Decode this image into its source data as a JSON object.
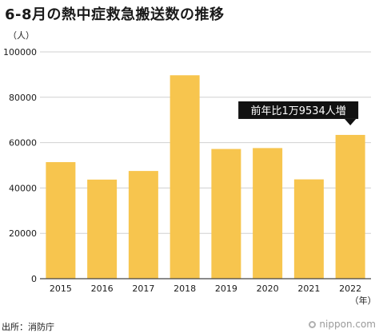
{
  "title": "6-8月の熱中症救急搬送数の推移",
  "unit_label": "（人）",
  "source": "出所：消防庁",
  "brand": "nippon.com",
  "chart_data": {
    "type": "bar",
    "categories": [
      "2015",
      "2016",
      "2017",
      "2018",
      "2019",
      "2020",
      "2021",
      "2022"
    ],
    "values": [
      51400,
      43700,
      47500,
      89700,
      57200,
      57600,
      43800,
      63400
    ],
    "ylim": [
      0,
      100000
    ],
    "yticks": [
      0,
      20000,
      40000,
      60000,
      80000,
      100000
    ],
    "ylabel": "（人）",
    "xlabel": "（年）",
    "grid": true,
    "bar_color": "#f7c54e",
    "grid_color": "#d0d0d0",
    "annotation": {
      "text": "前年比1万9534人増",
      "category": "2022",
      "background": "#111111",
      "color": "#ffffff"
    }
  }
}
